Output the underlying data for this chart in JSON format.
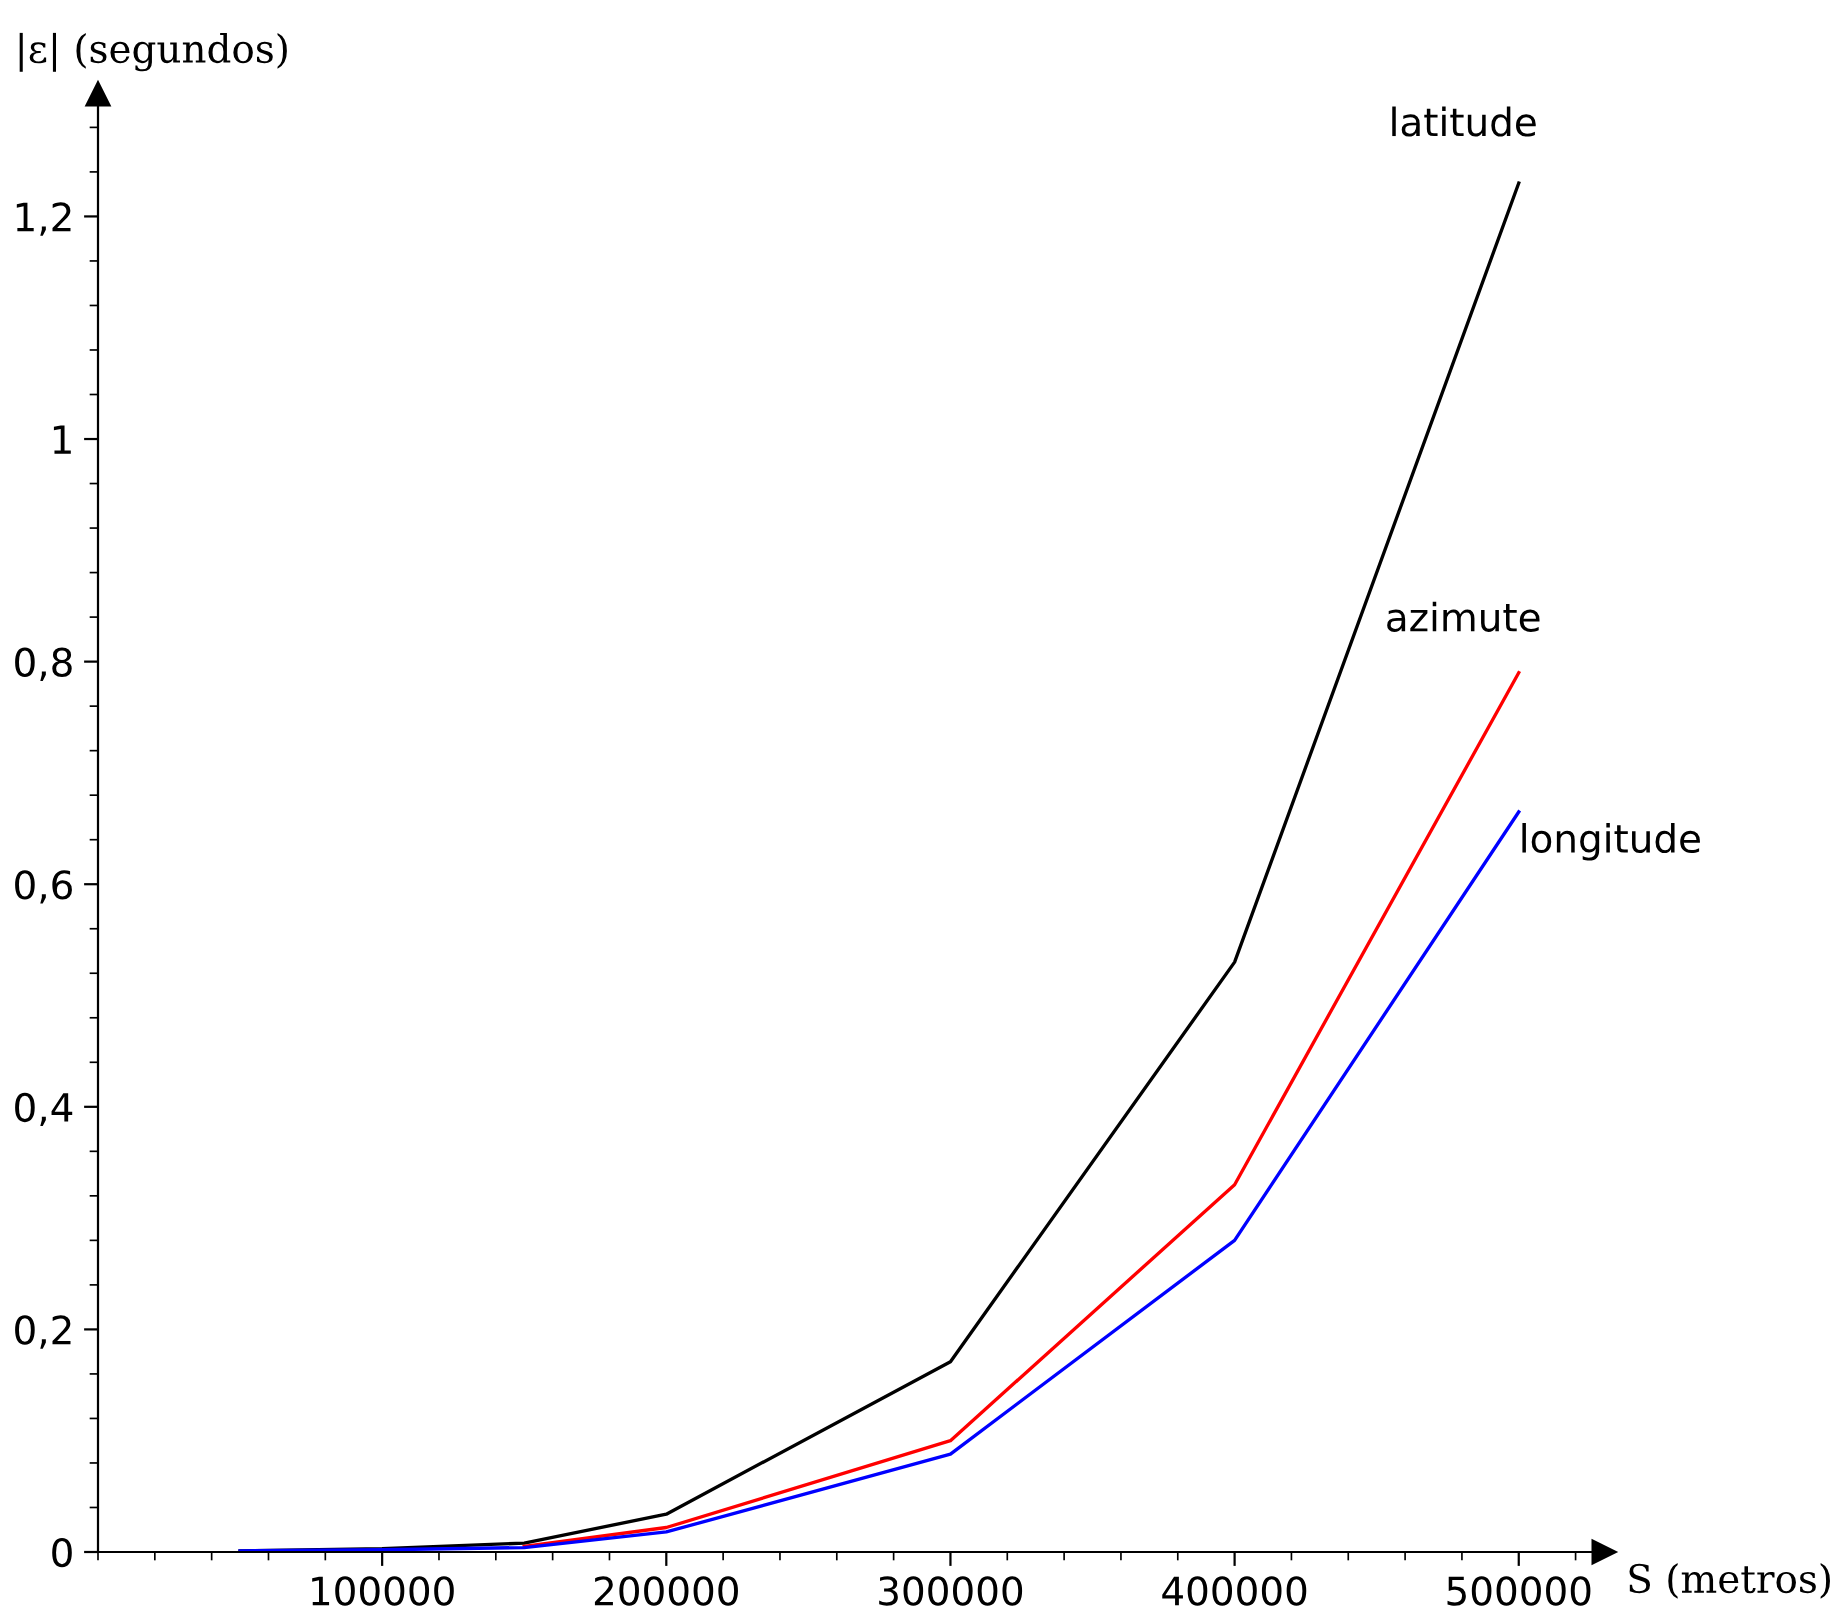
{
  "chart_data": {
    "type": "line",
    "xlabel": "S (metros)",
    "ylabel": "|ε| (segundos)",
    "x": [
      50000,
      100000,
      150000,
      200000,
      300000,
      400000,
      500000
    ],
    "series": [
      {
        "name": "latitude",
        "color": "#000000",
        "values": [
          0.001,
          0.003,
          0.008,
          0.034,
          0.171,
          0.53,
          1.23
        ]
      },
      {
        "name": "azimute",
        "color": "#ff0000",
        "values": [
          null,
          null,
          0.005,
          0.022,
          0.1,
          0.33,
          0.79
        ]
      },
      {
        "name": "longitude",
        "color": "#0000ff",
        "values": [
          0.001,
          0.002,
          0.004,
          0.018,
          0.088,
          0.28,
          0.665
        ]
      }
    ],
    "xlim": [
      0,
      530000
    ],
    "ylim": [
      0,
      1.31
    ],
    "xticks": [
      100000,
      200000,
      300000,
      400000,
      500000
    ],
    "yticks": [
      0,
      {
        "value": 0.2,
        "label": "0,2"
      },
      {
        "value": 0.4,
        "label": "0,4"
      },
      {
        "value": 0.6,
        "label": "0,6"
      },
      {
        "value": 0.8,
        "label": "0,8"
      },
      1,
      {
        "value": 1.2,
        "label": "1,2"
      }
    ],
    "grid": false,
    "legend": false,
    "marker": "none",
    "line_style": "solid"
  }
}
